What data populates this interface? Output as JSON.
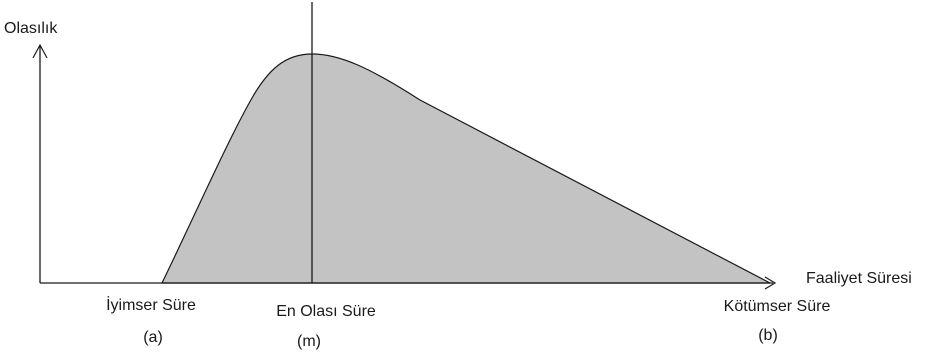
{
  "diagram": {
    "y_axis_label": "Olasılık",
    "x_axis_label": "Faaliyet Süresi",
    "points": {
      "optimistic": {
        "name": "İyimser Süre",
        "symbol": "(a)"
      },
      "most_likely": {
        "name": "En Olası Süre",
        "symbol": "(m)"
      },
      "pessimistic": {
        "name": "Kötümser Süre",
        "symbol": "(b)"
      }
    },
    "colors": {
      "fill": "#c3c3c3",
      "stroke": "#1a1a1a",
      "background": "#ffffff"
    }
  }
}
